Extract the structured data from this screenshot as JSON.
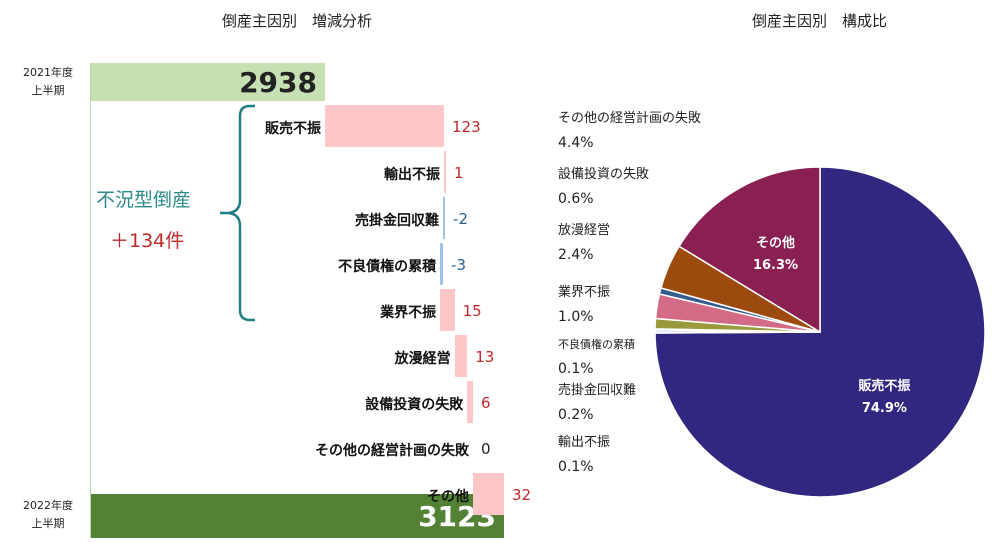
{
  "titles": {
    "waterfall": "倒産主因別　増減分析",
    "pie": "倒産主因別　構成比"
  },
  "periods": {
    "start": {
      "line1": "2021年度",
      "line2": "上半期",
      "value": 2938
    },
    "end": {
      "line1": "2022年度",
      "line2": "上半期",
      "value": 3123
    }
  },
  "group": {
    "label": "不況型倒産",
    "sum": "＋134件"
  },
  "colors": {
    "start_bar": "#c6e0b4",
    "end_bar": "#548235",
    "increase_bar": "#ffc7c8",
    "decrease_bar": "#9dc3e6",
    "positive_text": "#c0282a",
    "negative_text": "#2e5f8a",
    "bracket": "#1f7f86"
  },
  "chart_data": [
    {
      "type": "waterfall",
      "title": "倒産主因別　増減分析",
      "start": {
        "label": "2021年度上半期",
        "value": 2938
      },
      "end": {
        "label": "2022年度上半期",
        "value": 3123
      },
      "categories": [
        "販売不振",
        "輸出不振",
        "売掛金回収難",
        "不良債権の累積",
        "業界不振",
        "放漫経営",
        "設備投資の失敗",
        "その他の経営計画の失敗",
        "その他"
      ],
      "values": [
        123,
        1,
        -2,
        -3,
        15,
        13,
        6,
        0,
        32
      ],
      "labels": [
        "123",
        "1",
        "-2",
        "-3",
        "15",
        "13",
        "6",
        "0",
        "32"
      ]
    },
    {
      "type": "pie",
      "title": "倒産主因別　構成比",
      "slices": [
        {
          "name": "販売不振",
          "label": "販売不振",
          "value": 74.9,
          "pct": "74.9%",
          "color": "#322780"
        },
        {
          "name": "輸出不振",
          "label": "輸出不振",
          "value": 0.1,
          "pct": "0.1%",
          "color": "#4a7fc1"
        },
        {
          "name": "売掛金回収難",
          "label": "売掛金回収難",
          "value": 0.2,
          "pct": "0.2%",
          "color": "#7ea6d8"
        },
        {
          "name": "不良債権の累積",
          "label": "不良債権の累積",
          "value": 0.1,
          "pct": "0.1%",
          "color": "#c9a9d8"
        },
        {
          "name": "業界不振",
          "label": "業界不振",
          "value": 1.0,
          "pct": "1.0%",
          "color": "#9a9a3c"
        },
        {
          "name": "放漫経営",
          "label": "放漫経営",
          "value": 2.4,
          "pct": "2.4%",
          "color": "#d36a86"
        },
        {
          "name": "設備投資の失敗",
          "label": "設備投資の失敗",
          "value": 0.6,
          "pct": " 0.6%",
          "color": "#355c8c"
        },
        {
          "name": "その他の経営計画の失敗",
          "label": "その他の経営計画の失敗",
          "value": 4.4,
          "pct": "4.4%",
          "color": "#9c4a0e"
        },
        {
          "name": "その他",
          "label": "その他",
          "value": 16.3,
          "pct": "16.3%",
          "color": "#8a1f52"
        }
      ]
    }
  ]
}
